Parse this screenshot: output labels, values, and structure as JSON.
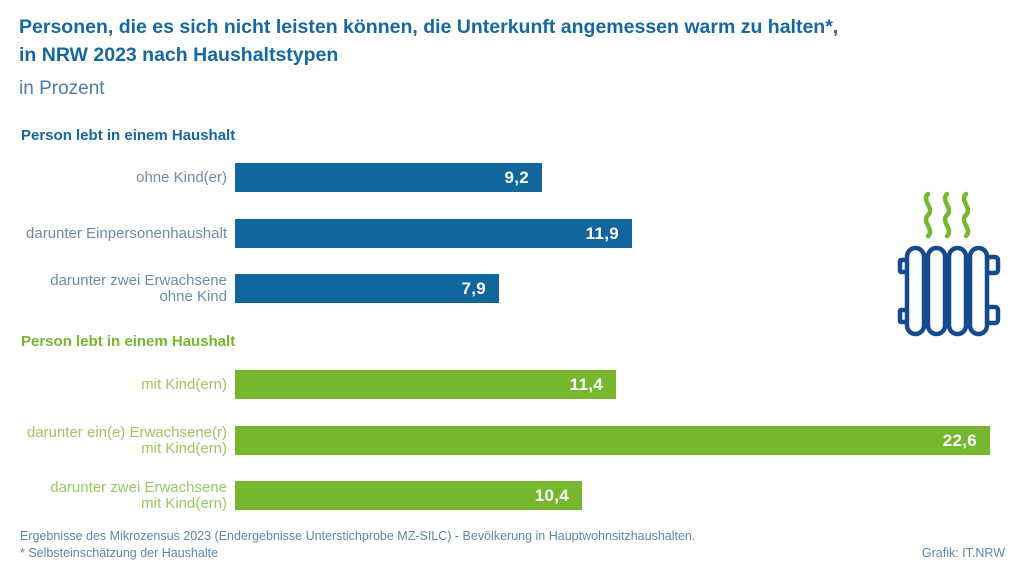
{
  "header": {
    "title_line1": "Personen, die es sich nicht leisten können, die Unterkunft angemessen warm zu halten*,",
    "title_line2": "in NRW 2023 nach Haushaltstypen",
    "subtitle": "in Prozent"
  },
  "chart_data": {
    "type": "bar",
    "orientation": "horizontal",
    "title": "Personen, die es sich nicht leisten können, die Unterkunft angemessen warm zu halten*, in NRW 2023 nach Haushaltstypen",
    "xlabel": "",
    "ylabel": "",
    "unit": "Prozent",
    "xlim": [
      0,
      23
    ],
    "grid": false,
    "legend": false,
    "value_decimal_separator": "comma",
    "groups": [
      {
        "header": "Person lebt in einem Haushalt",
        "header_color": "#15679e",
        "bar_color": "#10669d",
        "label_color": "#6e8ca9",
        "rows": [
          {
            "label": "ohne Kind(er)",
            "value": 9.2,
            "value_label": "9,2"
          },
          {
            "label": "darunter Einpersonenhaushalt",
            "value": 11.9,
            "value_label": "11,9"
          },
          {
            "label": "darunter zwei Erwachsene\nohne Kind",
            "value": 7.9,
            "value_label": "7,9"
          }
        ]
      },
      {
        "header": "Person lebt in einem Haushalt",
        "header_color": "#76b72d",
        "bar_color": "#76b72d",
        "label_color": "#9fc463",
        "rows": [
          {
            "label": "mit Kind(ern)",
            "value": 11.4,
            "value_label": "11,4"
          },
          {
            "label": "darunter ein(e) Erwachsene(r)\nmit Kind(ern)",
            "value": 22.6,
            "value_label": "22,6"
          },
          {
            "label": "darunter zwei Erwachsene\nmit Kind(ern)",
            "value": 10.4,
            "value_label": "10,4"
          }
        ]
      }
    ]
  },
  "icon": {
    "name": "radiator-with-heat-waves",
    "outline_color": "#164a8c",
    "waves_color": "#76b72d"
  },
  "footer": {
    "source_line": "Ergebnisse des Mikrozensus 2023 (Endergebnisse Unterstichprobe MZ-SILC) - Bevölkerung in Hauptwohnsitzhaushalten.",
    "footnote_line": "* Selbsteinschätzung der Haushalte",
    "credit": "Grafik: IT.NRW"
  },
  "colors": {
    "title_blue": "#16689f",
    "subtitle_blue": "#4d7da4",
    "bar_blue": "#10669d",
    "bar_green": "#76b72d",
    "footer_gray_blue": "#6086a8",
    "background": "#ffffff"
  }
}
